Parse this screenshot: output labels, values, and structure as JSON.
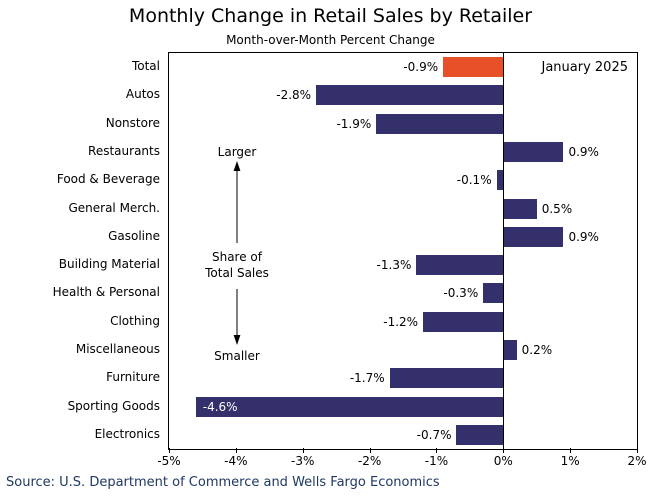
{
  "title": "Monthly Change in Retail Sales by Retailer",
  "subtitle": "Month-over-Month Percent Change",
  "annotation_period": "January 2025",
  "annotations": {
    "larger": "Larger",
    "share_line1": "Share of",
    "share_line2": "Total Sales",
    "smaller": "Smaller"
  },
  "source": "Source: U.S. Department of Commerce and Wells Fargo Economics",
  "colors": {
    "bar": "#34306b",
    "highlight": "#e8502a",
    "source_text": "#1f3864",
    "axis": "#000000"
  },
  "chart_data": {
    "type": "bar",
    "orientation": "horizontal",
    "title": "Monthly Change in Retail Sales by Retailer",
    "subtitle": "Month-over-Month Percent Change",
    "categories": [
      "Total",
      "Autos",
      "Nonstore",
      "Restaurants",
      "Food & Beverage",
      "General Merch.",
      "Gasoline",
      "Building Material",
      "Health & Personal",
      "Clothing",
      "Miscellaneous",
      "Furniture",
      "Sporting Goods",
      "Electronics"
    ],
    "values": [
      -0.9,
      -2.8,
      -1.9,
      0.9,
      -0.1,
      0.5,
      0.9,
      -1.3,
      -0.3,
      -1.2,
      0.2,
      -1.7,
      -4.6,
      -0.7
    ],
    "labels": [
      "-0.9%",
      "-2.8%",
      "-1.9%",
      "0.9%",
      "-0.1%",
      "0.5%",
      "0.9%",
      "-1.3%",
      "-0.3%",
      "-1.2%",
      "0.2%",
      "-1.7%",
      "-4.6%",
      "-0.7%"
    ],
    "highlight_index": 0,
    "xlim": [
      -5,
      2
    ],
    "x_ticks": [
      "-5%",
      "-4%",
      "-3%",
      "-2%",
      "-1%",
      "0%",
      "1%",
      "2%"
    ],
    "grid": false,
    "legend": false,
    "xlabel": "",
    "ylabel": ""
  }
}
